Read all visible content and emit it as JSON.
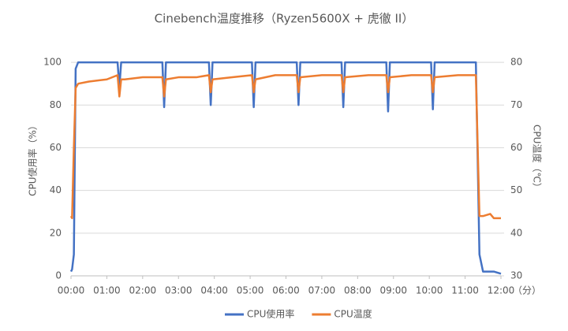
{
  "chart_data": {
    "type": "line",
    "title": "Cinebench温度推移（Ryzen5600X + 虎徹 II）",
    "xlabel": "（分）",
    "ylabel": "CPU使用率（%）",
    "y2label": "CPU温度（℃）",
    "x": [
      0,
      0.03,
      0.08,
      0.13,
      0.2,
      0.5,
      1.0,
      1.3,
      1.35,
      1.4,
      1.5,
      2.0,
      2.55,
      2.6,
      2.65,
      3.0,
      3.5,
      3.85,
      3.9,
      3.95,
      4.5,
      5.05,
      5.1,
      5.15,
      5.7,
      6.3,
      6.35,
      6.4,
      7.0,
      7.55,
      7.6,
      7.65,
      8.3,
      8.8,
      8.85,
      8.9,
      9.5,
      10.05,
      10.1,
      10.15,
      10.8,
      11.3,
      11.4,
      11.5,
      11.7,
      11.8,
      12.0
    ],
    "series": [
      {
        "name": "CPU使用率",
        "color": "#4472c4",
        "axis": "y",
        "values": [
          2,
          3,
          10,
          97,
          100,
          100,
          100,
          100,
          88,
          100,
          100,
          100,
          100,
          79,
          100,
          100,
          100,
          100,
          80,
          100,
          100,
          100,
          79,
          100,
          100,
          100,
          80,
          100,
          100,
          100,
          79,
          100,
          100,
          100,
          77,
          100,
          100,
          100,
          78,
          100,
          100,
          100,
          10,
          2,
          2,
          2,
          1
        ]
      },
      {
        "name": "CPU温度",
        "color": "#ed7d31",
        "axis": "y2",
        "values": [
          44,
          43.5,
          60,
          74,
          75,
          75.5,
          76,
          77,
          72,
          76,
          76,
          76.5,
          76.5,
          72,
          76,
          76.5,
          76.5,
          77,
          73,
          76,
          76.5,
          77,
          73,
          76,
          77,
          77,
          73,
          76.5,
          77,
          77,
          73,
          76.5,
          77,
          77,
          73,
          76.5,
          77,
          77,
          73,
          76.5,
          77,
          77,
          44,
          44,
          44.5,
          43.5,
          43.5
        ]
      }
    ],
    "xlim": [
      0,
      12
    ],
    "xticks": [
      {
        "value": 0,
        "label": "00:00"
      },
      {
        "value": 1,
        "label": "01:00"
      },
      {
        "value": 2,
        "label": "02:00"
      },
      {
        "value": 3,
        "label": "03:00"
      },
      {
        "value": 4,
        "label": "04:00"
      },
      {
        "value": 5,
        "label": "05:00"
      },
      {
        "value": 6,
        "label": "06:00"
      },
      {
        "value": 7,
        "label": "07:00"
      },
      {
        "value": 8,
        "label": "08:00"
      },
      {
        "value": 9,
        "label": "09:00"
      },
      {
        "value": 10,
        "label": "10:00"
      },
      {
        "value": 11,
        "label": "11:00"
      },
      {
        "value": 12,
        "label": "12:00"
      }
    ],
    "ylim": [
      0,
      110
    ],
    "yticks": [
      0,
      20,
      40,
      60,
      80,
      100
    ],
    "y2lim": [
      30,
      85
    ],
    "y2ticks": [
      30,
      40,
      50,
      60,
      70,
      80
    ],
    "grid": true,
    "legend": "bottom"
  }
}
